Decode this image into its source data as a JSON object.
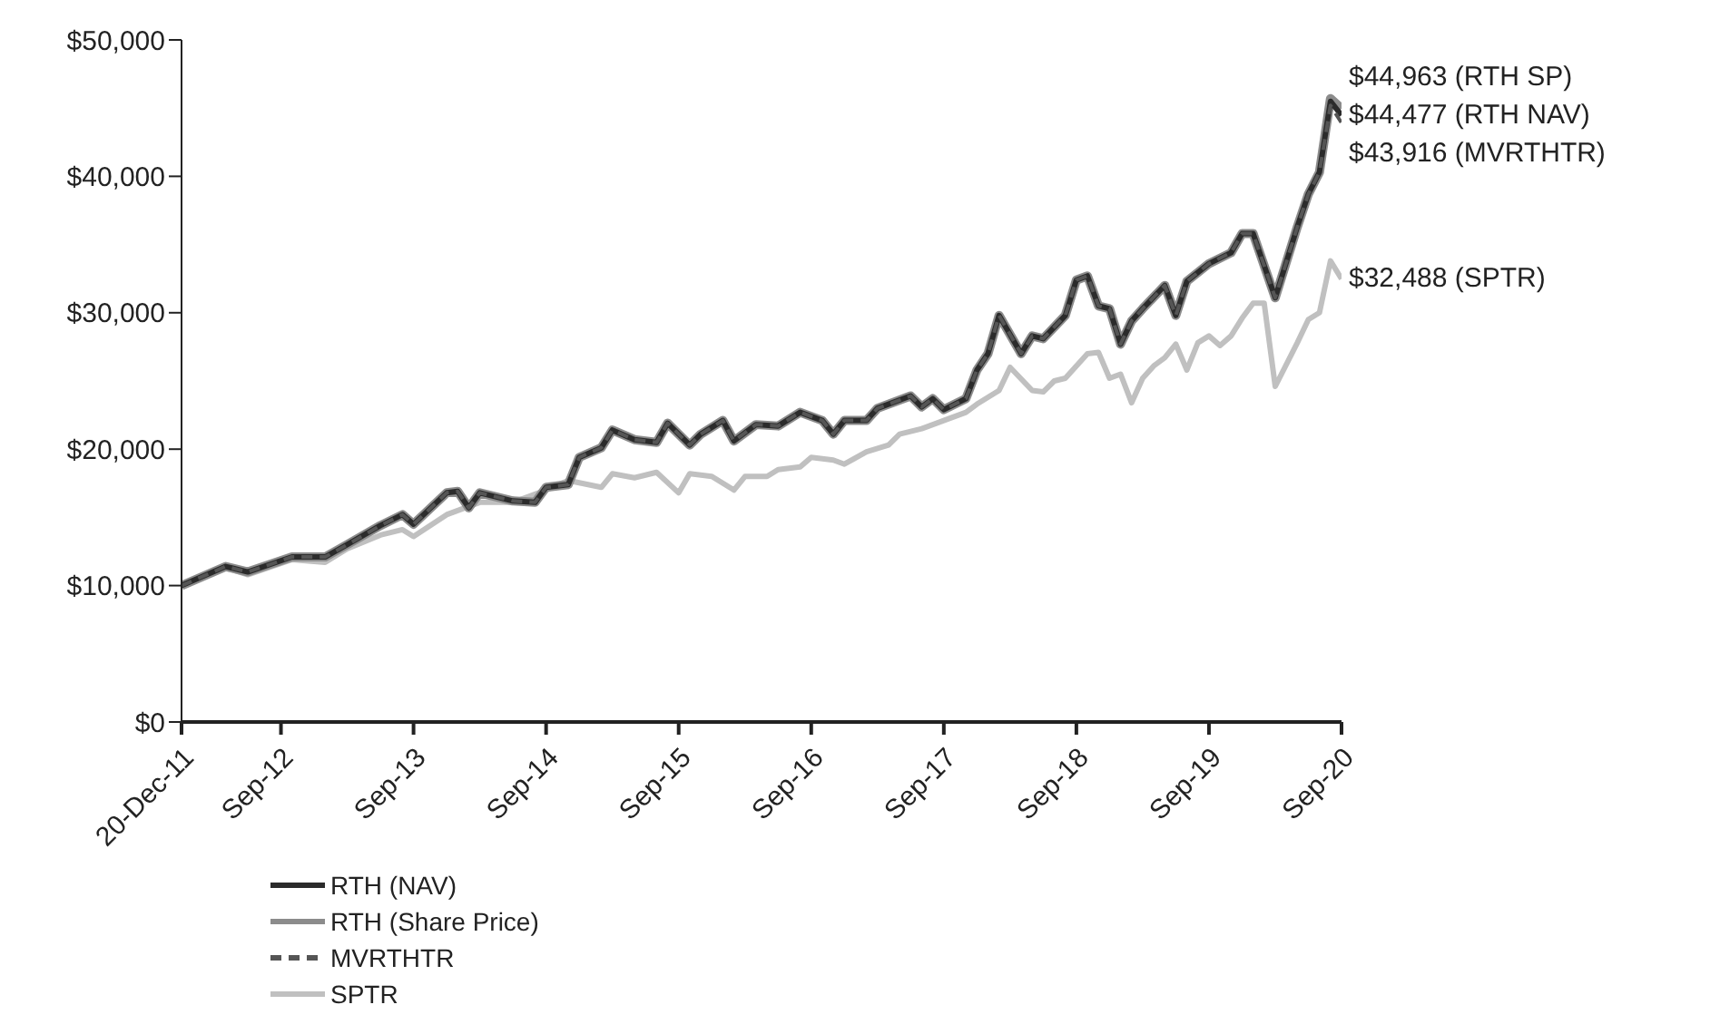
{
  "chart_data": {
    "type": "line",
    "x": [
      "2011-12",
      "2012-04",
      "2012-06",
      "2012-10",
      "2013-01",
      "2013-03",
      "2013-06",
      "2013-08",
      "2013-09",
      "2013-12",
      "2014-01",
      "2014-02",
      "2014-03",
      "2014-06",
      "2014-08",
      "2014-09",
      "2014-11",
      "2014-12",
      "2015-02",
      "2015-03",
      "2015-05",
      "2015-07",
      "2015-08",
      "2015-10",
      "2015-11",
      "2016-01",
      "2016-02",
      "2016-04",
      "2016-06",
      "2016-08",
      "2016-10",
      "2016-11",
      "2016-12",
      "2017-02",
      "2017-03",
      "2017-06",
      "2017-07",
      "2017-08",
      "2017-09",
      "2017-11",
      "2017-12",
      "2018-01",
      "2018-02",
      "2018-04",
      "2018-05",
      "2018-06",
      "2018-08",
      "2018-09",
      "2018-10",
      "2018-11",
      "2018-12",
      "2019-01",
      "2019-02",
      "2019-03",
      "2019-05",
      "2019-06",
      "2019-07",
      "2019-09",
      "2019-11",
      "2019-12",
      "2020-01",
      "2020-03",
      "2020-05",
      "2020-06",
      "2020-07",
      "2020-08",
      "2020-09"
    ],
    "series": [
      {
        "name": "RTH (NAV)",
        "color": "#2b2b2b",
        "values": [
          10000,
          11400,
          11000,
          12100,
          12100,
          13000,
          14400,
          15200,
          14500,
          16800,
          16900,
          15700,
          16800,
          16200,
          16100,
          17200,
          17400,
          19400,
          20100,
          21400,
          20700,
          20500,
          21900,
          20300,
          21100,
          22100,
          20600,
          21800,
          21700,
          22700,
          22100,
          21100,
          22100,
          22100,
          23000,
          23900,
          23100,
          23700,
          22900,
          23700,
          25800,
          27000,
          29800,
          27000,
          28300,
          28100,
          29800,
          32400,
          32700,
          30500,
          30300,
          27700,
          29400,
          30300,
          32000,
          29800,
          32300,
          33600,
          34400,
          35800,
          35800,
          31100,
          36300,
          38700,
          40300,
          45500,
          44477
        ]
      },
      {
        "name": "RTH (Share Price)",
        "color": "#8c8c8c",
        "values": [
          10000,
          11400,
          11000,
          12100,
          12100,
          13000,
          14400,
          15200,
          14500,
          16800,
          16900,
          15700,
          16800,
          16200,
          16100,
          17200,
          17400,
          19400,
          20100,
          21400,
          20700,
          20500,
          21900,
          20300,
          21100,
          22100,
          20600,
          21800,
          21700,
          22700,
          22100,
          21100,
          22100,
          22100,
          23000,
          23900,
          23100,
          23700,
          22900,
          23700,
          25800,
          27000,
          29800,
          27000,
          28300,
          28100,
          29800,
          32400,
          32700,
          30500,
          30300,
          27700,
          29400,
          30300,
          32000,
          29800,
          32300,
          33600,
          34400,
          35800,
          35800,
          31100,
          36300,
          38700,
          40300,
          45700,
          44963
        ]
      },
      {
        "name": "MVRTHTR",
        "color": "#555555",
        "line_style": "dashed",
        "values": [
          10000,
          11400,
          11000,
          12100,
          12100,
          13000,
          14400,
          15200,
          14500,
          16800,
          16900,
          15700,
          16800,
          16200,
          16100,
          17200,
          17400,
          19400,
          20100,
          21400,
          20700,
          20500,
          21900,
          20300,
          21100,
          22100,
          20600,
          21800,
          21700,
          22700,
          22100,
          21100,
          22100,
          22100,
          23000,
          23900,
          23100,
          23700,
          22900,
          23700,
          25800,
          27000,
          29800,
          27000,
          28300,
          28100,
          29800,
          32400,
          32700,
          30500,
          30300,
          27700,
          29400,
          30300,
          32000,
          29800,
          32300,
          33600,
          34400,
          35800,
          35800,
          31100,
          36300,
          38700,
          40300,
          45200,
          43916
        ]
      },
      {
        "name": "SPTR",
        "color": "#c0c0c0",
        "x": [
          "2011-12",
          "2012-04",
          "2012-06",
          "2012-10",
          "2013-01",
          "2013-03",
          "2013-06",
          "2013-08",
          "2013-09",
          "2013-12",
          "2014-03",
          "2014-06",
          "2014-09",
          "2014-11",
          "2015-02",
          "2015-03",
          "2015-05",
          "2015-07",
          "2015-09",
          "2015-10",
          "2015-12",
          "2016-02",
          "2016-03",
          "2016-05",
          "2016-06",
          "2016-08",
          "2016-09",
          "2016-11",
          "2016-12",
          "2017-02",
          "2017-04",
          "2017-05",
          "2017-07",
          "2017-09",
          "2017-11",
          "2017-12",
          "2018-02",
          "2018-03",
          "2018-05",
          "2018-06",
          "2018-07",
          "2018-08",
          "2018-10",
          "2018-11",
          "2018-12",
          "2019-01",
          "2019-02",
          "2019-03",
          "2019-04",
          "2019-05",
          "2019-06",
          "2019-07",
          "2019-08",
          "2019-09",
          "2019-10",
          "2019-11",
          "2019-12",
          "2020-01",
          "2020-02",
          "2020-03",
          "2020-05",
          "2020-06",
          "2020-07",
          "2020-08",
          "2020-09"
        ],
        "values": [
          10000,
          11300,
          10800,
          11900,
          11700,
          12700,
          13700,
          14100,
          13600,
          15200,
          16100,
          16100,
          17000,
          17700,
          17200,
          18200,
          17900,
          18300,
          16800,
          18200,
          18000,
          17000,
          18000,
          18000,
          18500,
          18700,
          19400,
          19200,
          18900,
          19800,
          20300,
          21100,
          21500,
          22100,
          22700,
          23300,
          24300,
          26000,
          24300,
          24200,
          25000,
          25200,
          27000,
          27100,
          25200,
          25500,
          23400,
          25200,
          26100,
          26700,
          27700,
          25800,
          27800,
          28300,
          27600,
          28300,
          29600,
          30700,
          30700,
          24600,
          27800,
          29500,
          30000,
          33800,
          32488
        ]
      }
    ],
    "xlim": [
      "2011-12",
      "2020-09"
    ],
    "xticks": [
      {
        "value": "2011-12",
        "label": "20-Dec-11"
      },
      {
        "value": "2012-09",
        "label": "Sep-12"
      },
      {
        "value": "2013-09",
        "label": "Sep-13"
      },
      {
        "value": "2014-09",
        "label": "Sep-14"
      },
      {
        "value": "2015-09",
        "label": "Sep-15"
      },
      {
        "value": "2016-09",
        "label": "Sep-16"
      },
      {
        "value": "2017-09",
        "label": "Sep-17"
      },
      {
        "value": "2018-09",
        "label": "Sep-18"
      },
      {
        "value": "2019-09",
        "label": "Sep-19"
      },
      {
        "value": "2020-09",
        "label": "Sep-20"
      }
    ],
    "ylim": [
      0,
      50000
    ],
    "yticks": [
      {
        "value": 0,
        "label": "$0"
      },
      {
        "value": 10000,
        "label": "$10,000"
      },
      {
        "value": 20000,
        "label": "$20,000"
      },
      {
        "value": 30000,
        "label": "$30,000"
      },
      {
        "value": 40000,
        "label": "$40,000"
      },
      {
        "value": 50000,
        "label": "$50,000"
      }
    ],
    "annotations": [
      {
        "text": "$44,963 (RTH SP)",
        "x": "2020-09",
        "y": 44963
      },
      {
        "text": "$44,477 (RTH NAV)",
        "x": "2020-09",
        "y": 44477
      },
      {
        "text": "$43,916 (MVRTHTR)",
        "x": "2020-09",
        "y": 43916
      },
      {
        "text": "$32,488 (SPTR)",
        "x": "2020-09",
        "y": 32488
      }
    ],
    "legend": "bottom",
    "grid": false,
    "marker": "none",
    "line_style": "solid"
  }
}
